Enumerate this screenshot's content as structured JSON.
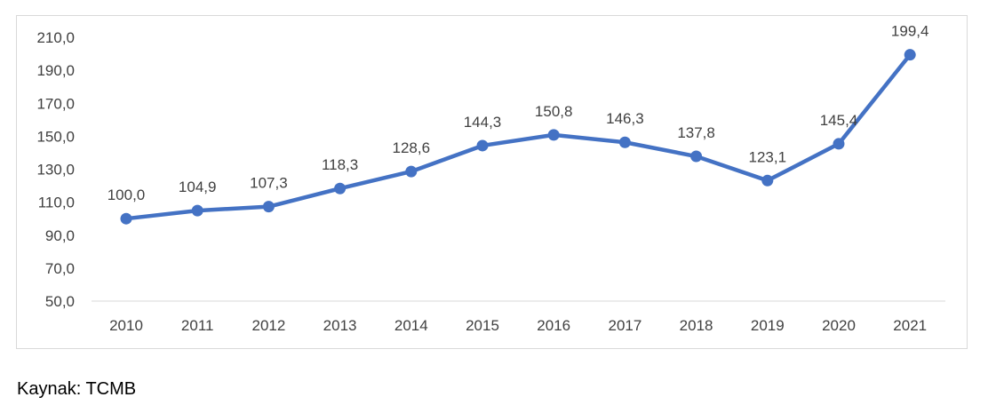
{
  "chart_data": {
    "type": "line",
    "categories": [
      "2010",
      "2011",
      "2012",
      "2013",
      "2014",
      "2015",
      "2016",
      "2017",
      "2018",
      "2019",
      "2020",
      "2021"
    ],
    "series": [
      {
        "values": [
          100.0,
          104.9,
          107.3,
          118.3,
          128.6,
          144.3,
          150.8,
          146.3,
          137.8,
          123.1,
          145.4,
          199.4
        ],
        "labels": [
          "100,0",
          "104,9",
          "107,3",
          "118,3",
          "128,6",
          "144,3",
          "150,8",
          "146,3",
          "137,8",
          "123,1",
          "145,4",
          "199,4"
        ],
        "color": "#4472c4"
      }
    ],
    "y_ticks": [
      50,
      70,
      90,
      110,
      130,
      150,
      170,
      190,
      210
    ],
    "y_tick_labels": [
      "50,0",
      "70,0",
      "90,0",
      "110,0",
      "130,0",
      "150,0",
      "170,0",
      "190,0",
      "210,0"
    ],
    "ylim": [
      50,
      210
    ],
    "grid": false,
    "legend": "none"
  },
  "source_text": "Kaynak: TCMB",
  "colors": {
    "line": "#4472c4",
    "axis": "#d9d9d9",
    "text": "#404040"
  }
}
